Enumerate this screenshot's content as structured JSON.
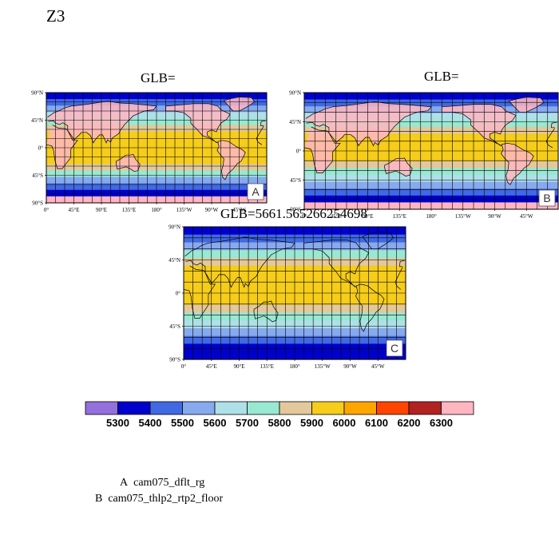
{
  "page_title": "Z3",
  "chart_data": {
    "type": "heatmap",
    "map_projection": "cylindrical-equidistant",
    "x_ticks": [
      "0°",
      "45°E",
      "90°E",
      "135°E",
      "180°",
      "135°W",
      "90°W",
      "45°W"
    ],
    "y_ticks": [
      "90°N",
      "45°N",
      "0°",
      "45°S",
      "90°S"
    ],
    "grid": true,
    "panels": [
      {
        "id": "A",
        "title": "GLB=",
        "label": "A",
        "bands": [
          5300,
          5400,
          5500,
          5600,
          5700,
          5800,
          5900,
          5900,
          5900,
          5900,
          5900,
          5800,
          5700,
          5500,
          5400,
          5300,
          6300
        ]
      },
      {
        "id": "B",
        "title": "GLB=",
        "label": "B",
        "bands": [
          5300,
          5400,
          5500,
          5600,
          5700,
          5800,
          5900,
          5900,
          5900,
          5900,
          5800,
          5700,
          5600,
          5500,
          5400,
          5300,
          6300
        ]
      },
      {
        "id": "C",
        "title": "GLB=5661.565266254698",
        "label": "C",
        "bands": [
          5300,
          5400,
          5500,
          5700,
          5800,
          5900,
          5900,
          5900,
          5900,
          5900,
          5800,
          5700,
          5600,
          5500,
          5400,
          5300,
          5300
        ]
      }
    ],
    "colorbar": {
      "levels": [
        "5300",
        "5400",
        "5500",
        "5600",
        "5700",
        "5800",
        "5900",
        "6000",
        "6100",
        "6200",
        "6300"
      ],
      "colors": [
        "#9370db",
        "#0000cd",
        "#4169e1",
        "#87a9ee",
        "#afe0e8",
        "#98e8d2",
        "#e3c89b",
        "#f5cd1a",
        "#ffa500",
        "#ff4500",
        "#b22222",
        "#ffb6c1"
      ]
    }
  },
  "legend": [
    {
      "key": "A",
      "name": "cam075_dflt_rg"
    },
    {
      "key": "B",
      "name": "cam075_thlp2_rtp2_floor"
    }
  ]
}
